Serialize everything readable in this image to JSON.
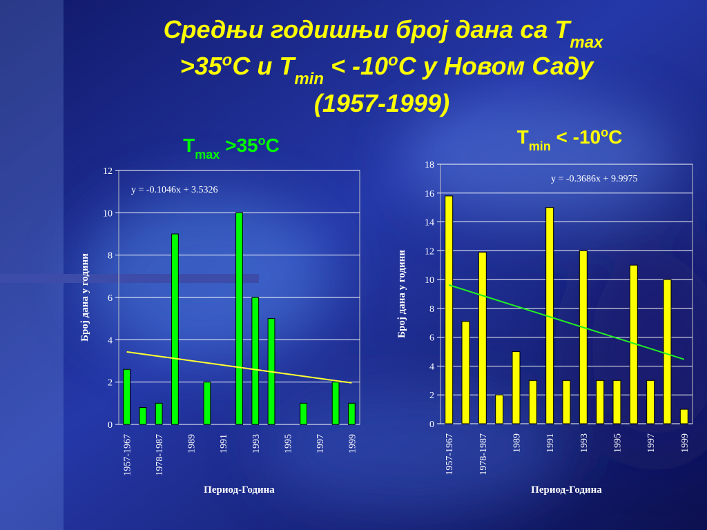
{
  "title": [
    [
      "Средњи годишњи број дана са T",
      "max"
    ],
    [
      ">35",
      "o",
      "C и T",
      "min",
      " < -10",
      "o",
      "C у Новом Саду"
    ],
    [
      "(1957-1999)"
    ]
  ],
  "chart_data": [
    {
      "type": "bar",
      "subtitle": [
        "T",
        "max",
        " >35",
        "o",
        "C"
      ],
      "categories": [
        "1957-1967",
        null,
        "1978-1987",
        null,
        "1989",
        null,
        "1991",
        null,
        "1993",
        null,
        "1995",
        null,
        "1997",
        null,
        "1999"
      ],
      "values": [
        2.6,
        0.8,
        1.0,
        9.0,
        0,
        2.0,
        0,
        10.0,
        6.0,
        5.0,
        0,
        1.0,
        0,
        2.0,
        1.0
      ],
      "color": "#00ff00",
      "ylim": [
        0,
        12
      ],
      "yticks": [
        0,
        2,
        4,
        6,
        8,
        10,
        12
      ],
      "grid": true,
      "ylabel": "Број дана у години",
      "xlabel": "Период-Година",
      "trendline": {
        "label": "y = -0.1046x + 3.5326",
        "slope": -0.1046,
        "intercept": 3.5326,
        "color": "#ffff33"
      }
    },
    {
      "type": "bar",
      "subtitle": [
        "T",
        "min",
        " < -10",
        "o",
        "C"
      ],
      "categories": [
        "1957-1967",
        null,
        "1978-1987",
        null,
        "1989",
        null,
        "1991",
        null,
        "1993",
        null,
        "1995",
        null,
        "1997",
        null,
        "1999"
      ],
      "values": [
        15.8,
        7.1,
        11.9,
        2.0,
        5.0,
        3.0,
        15.0,
        3.0,
        12.0,
        3.0,
        3.0,
        11.0,
        3.0,
        10.0,
        1.0
      ],
      "color": "#ffff00",
      "ylim": [
        0,
        18
      ],
      "yticks": [
        0,
        2,
        4,
        6,
        8,
        10,
        12,
        14,
        16,
        18
      ],
      "grid": true,
      "ylabel": "Број дана у години",
      "xlabel": "Период-Година",
      "trendline": {
        "label": "y = -0.3686x + 9.9975",
        "slope": -0.3686,
        "intercept": 9.9975,
        "color": "#22ee22"
      }
    }
  ]
}
